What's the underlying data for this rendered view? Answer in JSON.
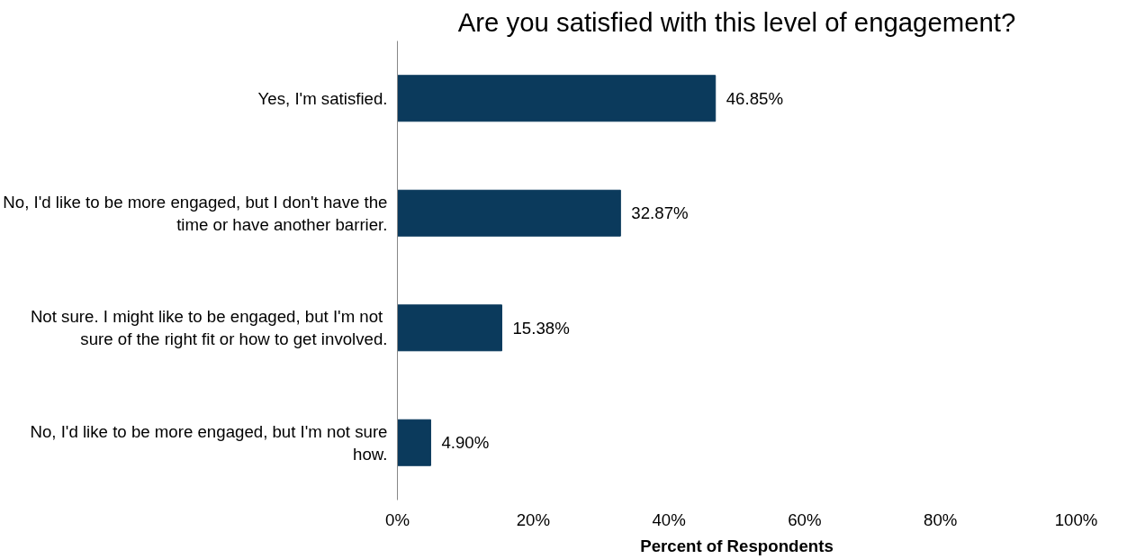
{
  "chart_data": {
    "type": "bar",
    "orientation": "horizontal",
    "title": "Are you satisfied with this level of engagement?",
    "xlabel": "Percent of Respondents",
    "categories": [
      "Yes, I'm satisfied.",
      "No, I'd like to be more engaged, but I don't have the time or have another barrier.",
      "Not sure.  I might like to be engaged, but I'm not sure of the right fit or how to get involved.",
      "No, I'd like to be more engaged, but I'm not sure how."
    ],
    "values": [
      46.85,
      32.87,
      15.38,
      4.9
    ],
    "value_labels": [
      "46.85%",
      "32.87%",
      "15.38%",
      "4.90%"
    ],
    "color": "#0b3a5c",
    "xlim": [
      0,
      100
    ],
    "xticks": [
      {
        "value": 0,
        "label": "0%"
      },
      {
        "value": 20,
        "label": "20%"
      },
      {
        "value": 40,
        "label": "40%"
      },
      {
        "value": 60,
        "label": "60%"
      },
      {
        "value": 80,
        "label": "80%"
      },
      {
        "value": 100,
        "label": "100%"
      }
    ],
    "grid": false
  }
}
